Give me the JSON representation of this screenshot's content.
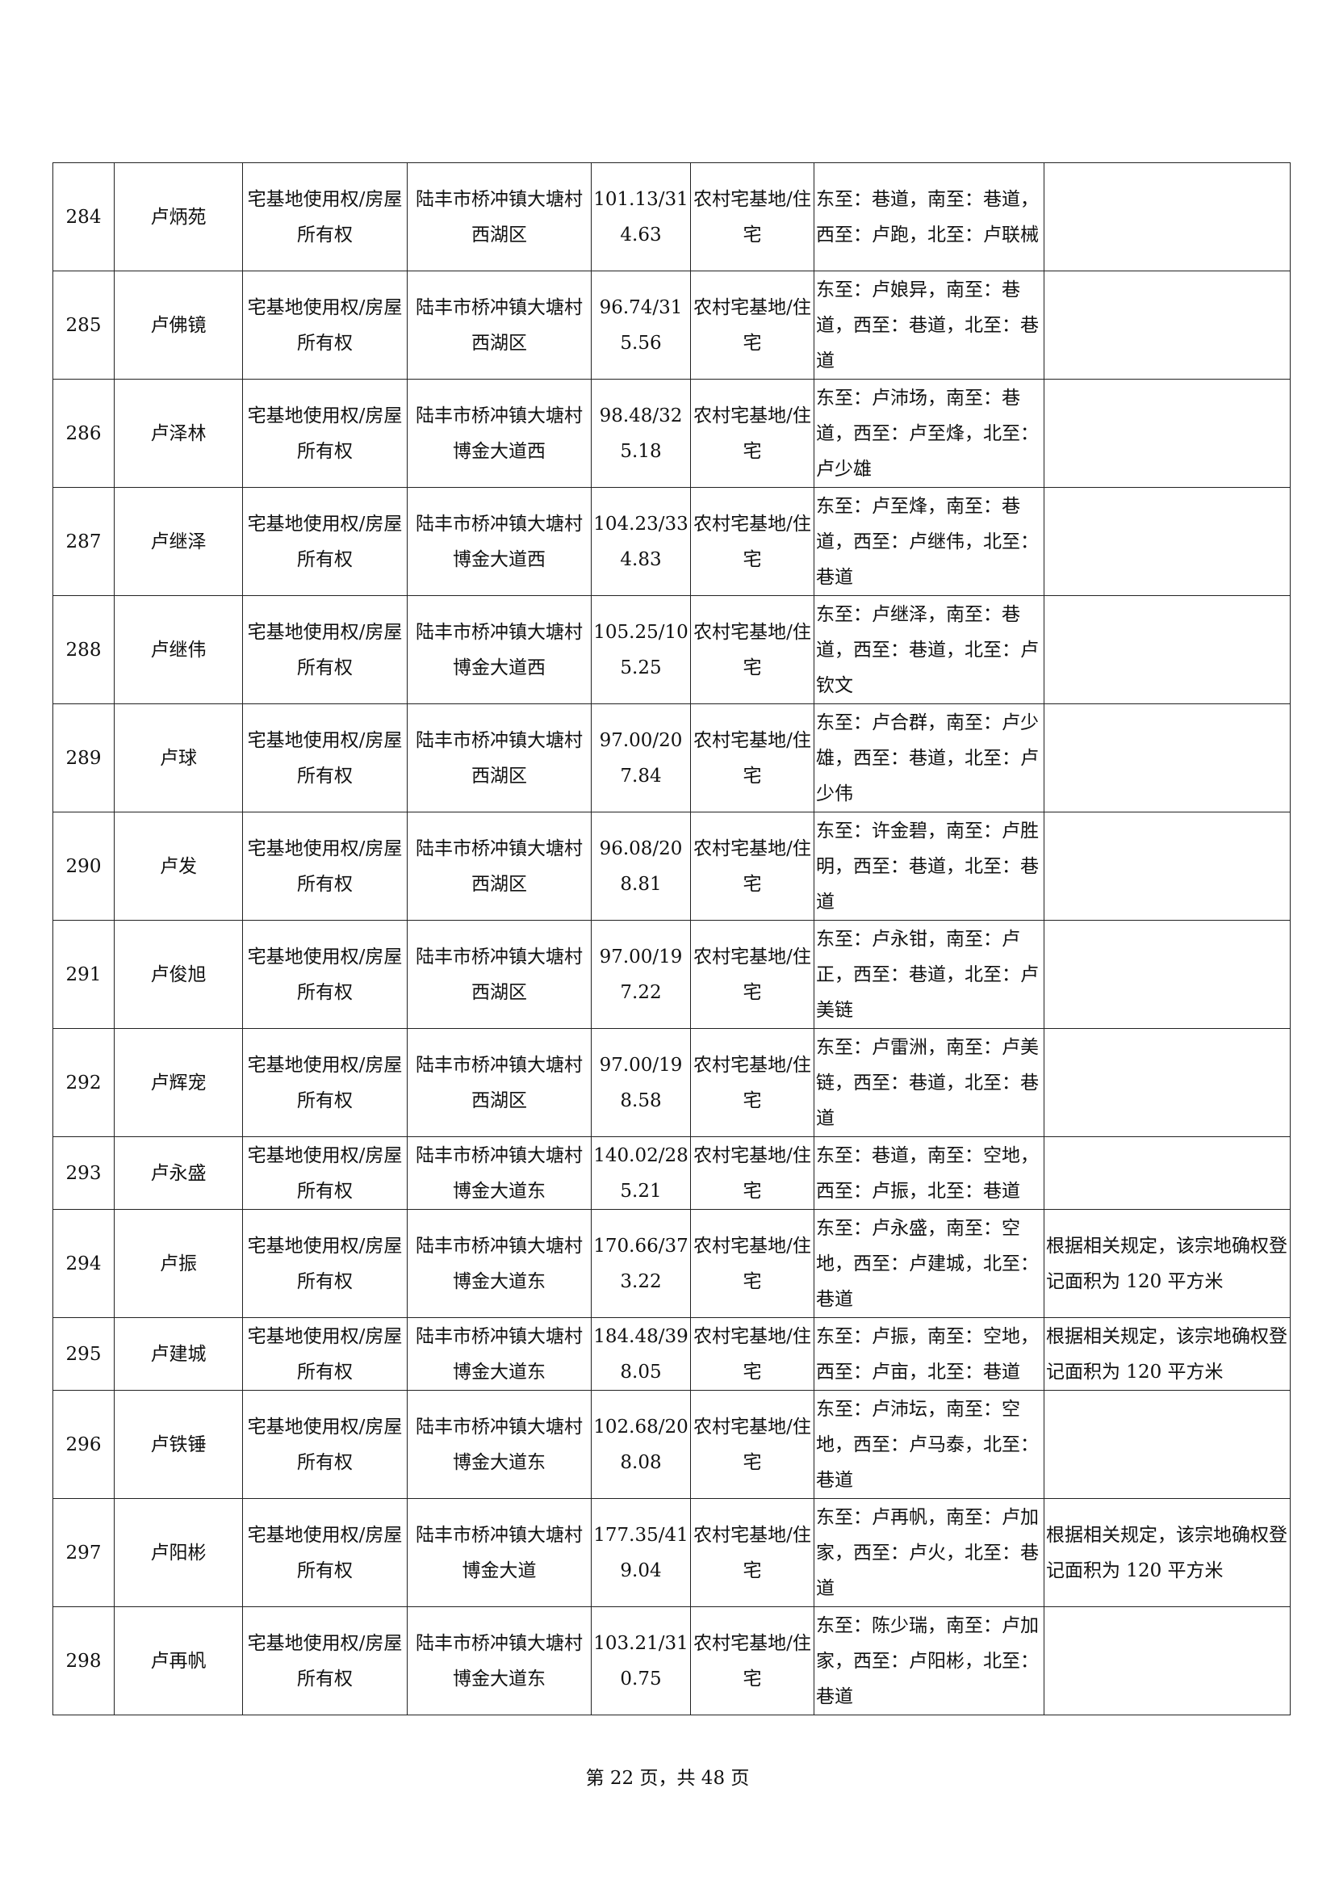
{
  "rows": [
    {
      "no": "284",
      "name": "卢炳苑",
      "right": "宅基地使用权/房屋所有权",
      "loc": "陆丰市桥冲镇大塘村西湖区",
      "area": "101.13/314.63",
      "use": "农村宅基地/住宅",
      "bound": "东至：巷道，南至：巷道，西至：卢跑，北至：卢联械",
      "note": ""
    },
    {
      "no": "285",
      "name": "卢佛镜",
      "right": "宅基地使用权/房屋所有权",
      "loc": "陆丰市桥冲镇大塘村西湖区",
      "area": "96.74/315.56",
      "use": "农村宅基地/住宅",
      "bound": "东至：卢娘异，南至：巷道，西至：巷道，北至：巷道",
      "note": ""
    },
    {
      "no": "286",
      "name": "卢泽林",
      "right": "宅基地使用权/房屋所有权",
      "loc": "陆丰市桥冲镇大塘村博金大道西",
      "area": "98.48/325.18",
      "use": "农村宅基地/住宅",
      "bound": "东至：卢沛场，南至：巷道，西至：卢至烽，北至：卢少雄",
      "note": ""
    },
    {
      "no": "287",
      "name": "卢继泽",
      "right": "宅基地使用权/房屋所有权",
      "loc": "陆丰市桥冲镇大塘村博金大道西",
      "area": "104.23/334.83",
      "use": "农村宅基地/住宅",
      "bound": "东至：卢至烽，南至：巷道，西至：卢继伟，北至：巷道",
      "note": ""
    },
    {
      "no": "288",
      "name": "卢继伟",
      "right": "宅基地使用权/房屋所有权",
      "loc": "陆丰市桥冲镇大塘村博金大道西",
      "area": "105.25/105.25",
      "use": "农村宅基地/住宅",
      "bound": "东至：卢继泽，南至：巷道，西至：巷道，北至：卢钦文",
      "note": ""
    },
    {
      "no": "289",
      "name": "卢球",
      "right": "宅基地使用权/房屋所有权",
      "loc": "陆丰市桥冲镇大塘村西湖区",
      "area": "97.00/207.84",
      "use": "农村宅基地/住宅",
      "bound": "东至：卢合群，南至：卢少雄，西至：巷道，北至：卢少伟",
      "note": ""
    },
    {
      "no": "290",
      "name": "卢发",
      "right": "宅基地使用权/房屋所有权",
      "loc": "陆丰市桥冲镇大塘村西湖区",
      "area": "96.08/208.81",
      "use": "农村宅基地/住宅",
      "bound": "东至：许金碧，南至：卢胜明，西至：巷道，北至：巷道",
      "note": ""
    },
    {
      "no": "291",
      "name": "卢俊旭",
      "right": "宅基地使用权/房屋所有权",
      "loc": "陆丰市桥冲镇大塘村西湖区",
      "area": "97.00/197.22",
      "use": "农村宅基地/住宅",
      "bound": "东至：卢永钳，南至：卢正，西至：巷道，北至：卢美链",
      "note": ""
    },
    {
      "no": "292",
      "name": "卢辉宠",
      "right": "宅基地使用权/房屋所有权",
      "loc": "陆丰市桥冲镇大塘村西湖区",
      "area": "97.00/198.58",
      "use": "农村宅基地/住宅",
      "bound": "东至：卢雷洲，南至：卢美链，西至：巷道，北至：巷道",
      "note": ""
    },
    {
      "no": "293",
      "name": "卢永盛",
      "right": "宅基地使用权/房屋所有权",
      "loc": "陆丰市桥冲镇大塘村博金大道东",
      "area": "140.02/285.21",
      "use": "农村宅基地/住宅",
      "bound": "东至：巷道，南至：空地，西至：卢振，北至：巷道",
      "note": ""
    },
    {
      "no": "294",
      "name": "卢振",
      "right": "宅基地使用权/房屋所有权",
      "loc": "陆丰市桥冲镇大塘村博金大道东",
      "area": "170.66/373.22",
      "use": "农村宅基地/住宅",
      "bound": "东至：卢永盛，南至：空地，西至：卢建城，北至：巷道",
      "note": "根据相关规定，该宗地确权登记面积为 120 平方米"
    },
    {
      "no": "295",
      "name": "卢建城",
      "right": "宅基地使用权/房屋所有权",
      "loc": "陆丰市桥冲镇大塘村博金大道东",
      "area": "184.48/398.05",
      "use": "农村宅基地/住宅",
      "bound": "东至：卢振，南至：空地，西至：卢亩，北至：巷道",
      "note": "根据相关规定，该宗地确权登记面积为 120 平方米"
    },
    {
      "no": "296",
      "name": "卢铁锤",
      "right": "宅基地使用权/房屋所有权",
      "loc": "陆丰市桥冲镇大塘村博金大道东",
      "area": "102.68/208.08",
      "use": "农村宅基地/住宅",
      "bound": "东至：卢沛坛，南至：空地，西至：卢马泰，北至：巷道",
      "note": ""
    },
    {
      "no": "297",
      "name": "卢阳彬",
      "right": "宅基地使用权/房屋所有权",
      "loc": "陆丰市桥冲镇大塘村博金大道",
      "area": "177.35/419.04",
      "use": "农村宅基地/住宅",
      "bound": "东至：卢再帆，南至：卢加家，西至：卢火，北至：巷道",
      "note": "根据相关规定，该宗地确权登记面积为 120 平方米"
    },
    {
      "no": "298",
      "name": "卢再帆",
      "right": "宅基地使用权/房屋所有权",
      "loc": "陆丰市桥冲镇大塘村博金大道东",
      "area": "103.21/310.75",
      "use": "农村宅基地/住宅",
      "bound": "东至：陈少瑞，南至：卢加家，西至：卢阳彬，北至：巷道",
      "note": ""
    }
  ],
  "footer": "第 22 页，共 48 页"
}
